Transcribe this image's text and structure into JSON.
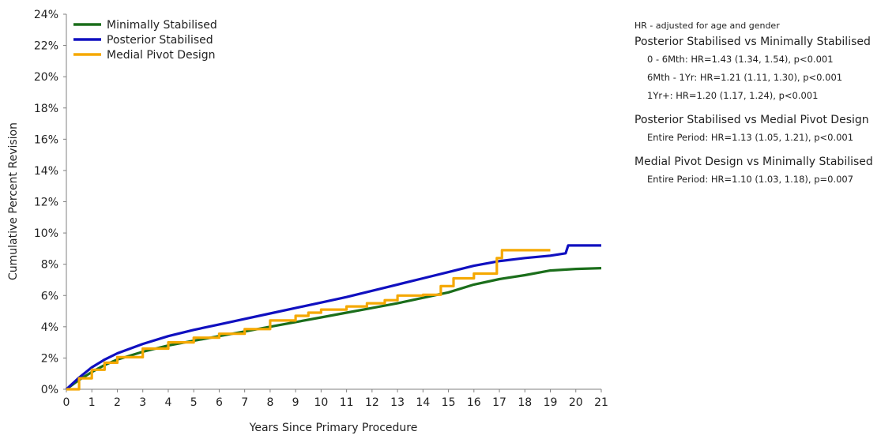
{
  "chart_data": {
    "type": "line",
    "title": "",
    "xlabel": "Years Since Primary Procedure",
    "ylabel": "Cumulative Percent Revision",
    "xlim": [
      0,
      21
    ],
    "ylim": [
      0,
      24
    ],
    "x_ticks": [
      "0",
      "1",
      "2",
      "3",
      "4",
      "5",
      "6",
      "7",
      "8",
      "9",
      "10",
      "11",
      "12",
      "13",
      "14",
      "15",
      "16",
      "17",
      "18",
      "19",
      "20",
      "21"
    ],
    "y_ticks": [
      "0%",
      "2%",
      "4%",
      "6%",
      "8%",
      "10%",
      "12%",
      "14%",
      "16%",
      "18%",
      "20%",
      "22%",
      "24%"
    ],
    "grid": false,
    "legend_position": "top-left",
    "series": [
      {
        "name": "Minimally Stabilised",
        "color": "#1b6e1b",
        "step": false,
        "points": [
          [
            0,
            0
          ],
          [
            0.5,
            0.6
          ],
          [
            1,
            1.1
          ],
          [
            1.5,
            1.55
          ],
          [
            2,
            1.9
          ],
          [
            3,
            2.4
          ],
          [
            4,
            2.8
          ],
          [
            5,
            3.1
          ],
          [
            6,
            3.4
          ],
          [
            7,
            3.7
          ],
          [
            8,
            4.0
          ],
          [
            9,
            4.3
          ],
          [
            10,
            4.6
          ],
          [
            11,
            4.9
          ],
          [
            12,
            5.2
          ],
          [
            13,
            5.5
          ],
          [
            14,
            5.85
          ],
          [
            15,
            6.2
          ],
          [
            16,
            6.7
          ],
          [
            17,
            7.05
          ],
          [
            18,
            7.3
          ],
          [
            19,
            7.6
          ],
          [
            20,
            7.7
          ],
          [
            21,
            7.75
          ]
        ]
      },
      {
        "name": "Posterior Stabilised",
        "color": "#1010c0",
        "step": false,
        "points": [
          [
            0,
            0
          ],
          [
            0.5,
            0.75
          ],
          [
            1,
            1.4
          ],
          [
            1.5,
            1.9
          ],
          [
            2,
            2.3
          ],
          [
            3,
            2.9
          ],
          [
            4,
            3.4
          ],
          [
            5,
            3.8
          ],
          [
            6,
            4.15
          ],
          [
            7,
            4.5
          ],
          [
            8,
            4.85
          ],
          [
            9,
            5.2
          ],
          [
            10,
            5.55
          ],
          [
            11,
            5.9
          ],
          [
            12,
            6.3
          ],
          [
            13,
            6.7
          ],
          [
            14,
            7.1
          ],
          [
            15,
            7.5
          ],
          [
            16,
            7.9
          ],
          [
            17,
            8.2
          ],
          [
            18,
            8.4
          ],
          [
            19,
            8.55
          ],
          [
            19.6,
            8.7
          ],
          [
            19.7,
            9.2
          ],
          [
            20,
            9.2
          ],
          [
            21,
            9.2
          ]
        ]
      },
      {
        "name": "Medial Pivot Design",
        "color": "#f5a800",
        "step": true,
        "points": [
          [
            0,
            0
          ],
          [
            0.5,
            0.7
          ],
          [
            1,
            1.25
          ],
          [
            1.5,
            1.7
          ],
          [
            2,
            2.05
          ],
          [
            3,
            2.6
          ],
          [
            4,
            3.0
          ],
          [
            5,
            3.3
          ],
          [
            6,
            3.55
          ],
          [
            7,
            3.85
          ],
          [
            8,
            4.4
          ],
          [
            9,
            4.7
          ],
          [
            9.5,
            4.9
          ],
          [
            10,
            5.1
          ],
          [
            11,
            5.3
          ],
          [
            11.8,
            5.5
          ],
          [
            12.5,
            5.7
          ],
          [
            13,
            6.0
          ],
          [
            14,
            6.05
          ],
          [
            14.7,
            6.6
          ],
          [
            15.2,
            7.1
          ],
          [
            16,
            7.4
          ],
          [
            16.9,
            8.4
          ],
          [
            17.1,
            8.9
          ],
          [
            19,
            8.9
          ]
        ]
      }
    ],
    "annotations": {
      "note": "HR - adjusted for age and gender",
      "comparisons": [
        {
          "heading": "Posterior Stabilised vs Minimally Stabilised",
          "lines": [
            "0 - 6Mth: HR=1.43 (1.34, 1.54), p<0.001",
            "6Mth - 1Yr: HR=1.21 (1.11, 1.30), p<0.001",
            "1Yr+: HR=1.20 (1.17, 1.24), p<0.001"
          ]
        },
        {
          "heading": "Posterior Stabilised vs Medial Pivot Design",
          "lines": [
            "Entire Period: HR=1.13 (1.05, 1.21), p<0.001"
          ]
        },
        {
          "heading": "Medial Pivot Design vs Minimally Stabilised",
          "lines": [
            "Entire Period: HR=1.10 (1.03, 1.18), p=0.007"
          ]
        }
      ]
    }
  }
}
